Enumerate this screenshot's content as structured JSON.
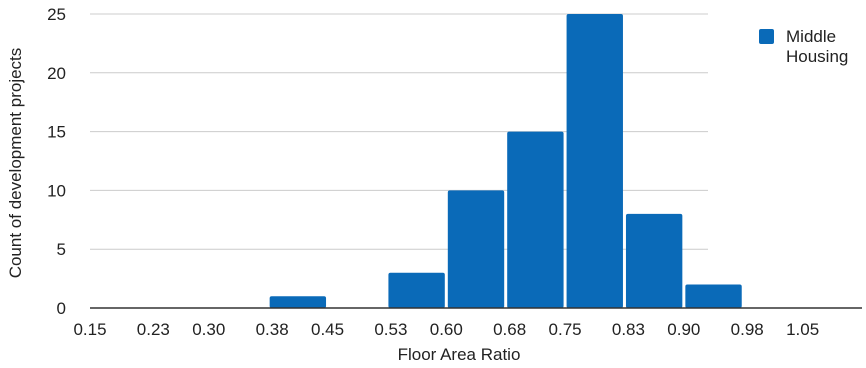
{
  "chart_data": {
    "type": "bar",
    "subtype": "histogram",
    "title": "",
    "xlabel": "Floor Area Ratio",
    "ylabel": "Count of development projects",
    "x_tick_labels": [
      "0.15",
      "0.23",
      "0.30",
      "0.38",
      "0.45",
      "0.53",
      "0.60",
      "0.68",
      "0.75",
      "0.83",
      "0.90",
      "0.98",
      "1.05"
    ],
    "y_tick_labels": [
      "0",
      "5",
      "10",
      "15",
      "20",
      "25"
    ],
    "ylim": [
      0,
      25
    ],
    "bin_width": 0.075,
    "x_domain": [
      0.15,
      1.125
    ],
    "series": [
      {
        "name": "Middle Housing",
        "color": "#0a6ab8",
        "bins": [
          {
            "start": 0.375,
            "end": 0.45,
            "value": 1
          },
          {
            "start": 0.525,
            "end": 0.6,
            "value": 3
          },
          {
            "start": 0.6,
            "end": 0.675,
            "value": 10
          },
          {
            "start": 0.675,
            "end": 0.75,
            "value": 15
          },
          {
            "start": 0.75,
            "end": 0.825,
            "value": 25
          },
          {
            "start": 0.825,
            "end": 0.9,
            "value": 8
          },
          {
            "start": 0.9,
            "end": 0.975,
            "value": 2
          }
        ]
      }
    ],
    "legend": {
      "position": "top-right",
      "label_lines": [
        "Middle",
        "Housing"
      ]
    },
    "grid": true
  }
}
